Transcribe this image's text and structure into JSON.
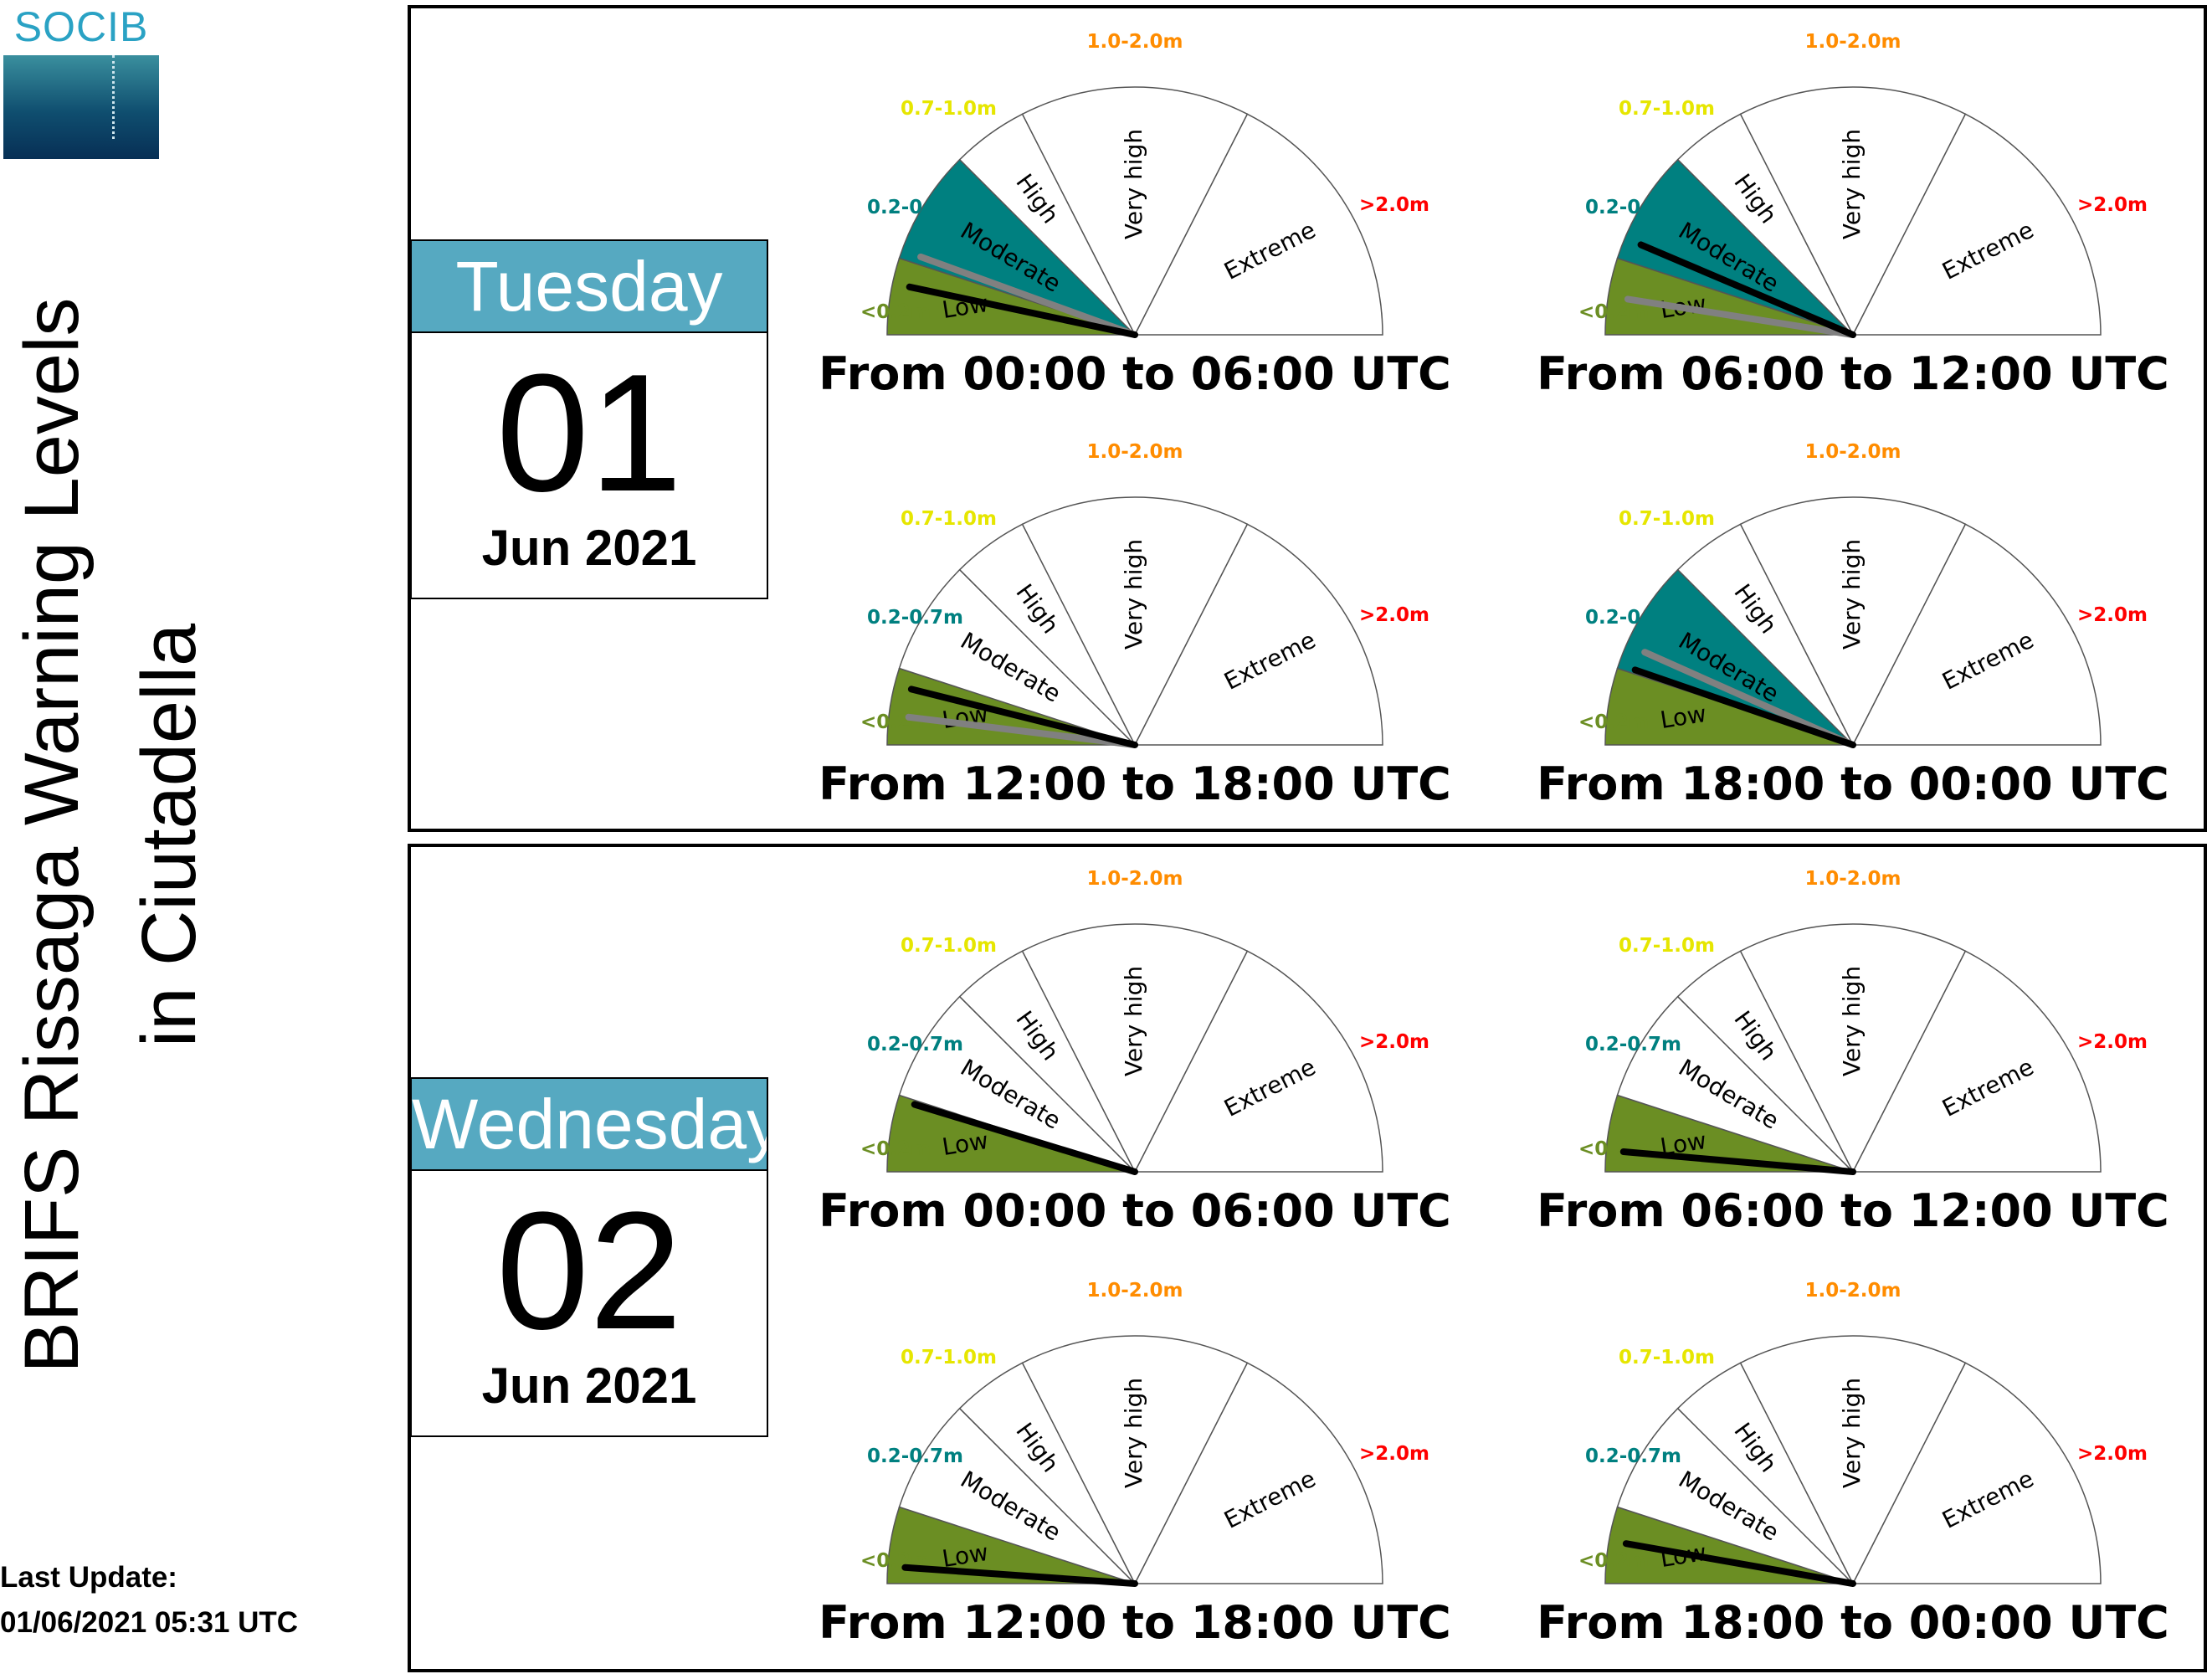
{
  "logo": {
    "text": "SOCIB"
  },
  "title": {
    "line1": "BRIFS Rissaga Warning Levels",
    "line2": "in Ciutadella"
  },
  "last_update": {
    "label": "Last Update:",
    "value": "01/06/2021 05:31 UTC"
  },
  "days": [
    {
      "weekday": "Tuesday",
      "day": "01",
      "month_year": "Jun 2021"
    },
    {
      "weekday": "Wednesday",
      "day": "02",
      "month_year": "Jun 2021"
    }
  ],
  "colors": {
    "low": "#6b8e23",
    "moderate": "#008080",
    "high": "#ffff00",
    "very_high": "#ff8c00",
    "extreme": "#ff0000",
    "needle_main": "#000000",
    "needle_secondary": "#808080",
    "header": "#56a9c1"
  },
  "chart_data": {
    "type": "gauge",
    "levels": [
      "Low",
      "Moderate",
      "High",
      "Very high",
      "Extreme"
    ],
    "thresholds": [
      "<0.2m",
      "0.2-0.7m",
      "0.7-1.0m",
      "1.0-2.0m",
      ">2.0m"
    ],
    "threshold_colors": [
      "#6b8e23",
      "#008080",
      "#e6e600",
      "#ff8c00",
      "#ff0000"
    ],
    "gauges": [
      {
        "day": "Tuesday 01",
        "period": "From 00:00 to 06:00 UTC",
        "highlighted_level": "Moderate",
        "needle_main_deg": 12,
        "needle_secondary_deg": 20
      },
      {
        "day": "Tuesday 01",
        "period": "From 06:00 to 12:00 UTC",
        "highlighted_level": "Moderate",
        "needle_main_deg": 23,
        "needle_secondary_deg": 9
      },
      {
        "day": "Tuesday 01",
        "period": "From 12:00 to 18:00 UTC",
        "highlighted_level": "Low",
        "needle_main_deg": 14,
        "needle_secondary_deg": 7
      },
      {
        "day": "Tuesday 01",
        "period": "From 18:00 to 00:00 UTC",
        "highlighted_level": "Moderate",
        "needle_main_deg": 19,
        "needle_secondary_deg": 24
      },
      {
        "day": "Wednesday 02",
        "period": "From 00:00 to 06:00 UTC",
        "highlighted_level": "Low",
        "needle_main_deg": 17,
        "needle_secondary_deg": null
      },
      {
        "day": "Wednesday 02",
        "period": "From 06:00 to 12:00 UTC",
        "highlighted_level": "Low",
        "needle_main_deg": 5,
        "needle_secondary_deg": null
      },
      {
        "day": "Wednesday 02",
        "period": "From 12:00 to 18:00 UTC",
        "highlighted_level": "Low",
        "needle_main_deg": 4,
        "needle_secondary_deg": null
      },
      {
        "day": "Wednesday 02",
        "period": "From 18:00 to 00:00 UTC",
        "highlighted_level": "Low",
        "needle_main_deg": 10,
        "needle_secondary_deg": null
      }
    ]
  }
}
